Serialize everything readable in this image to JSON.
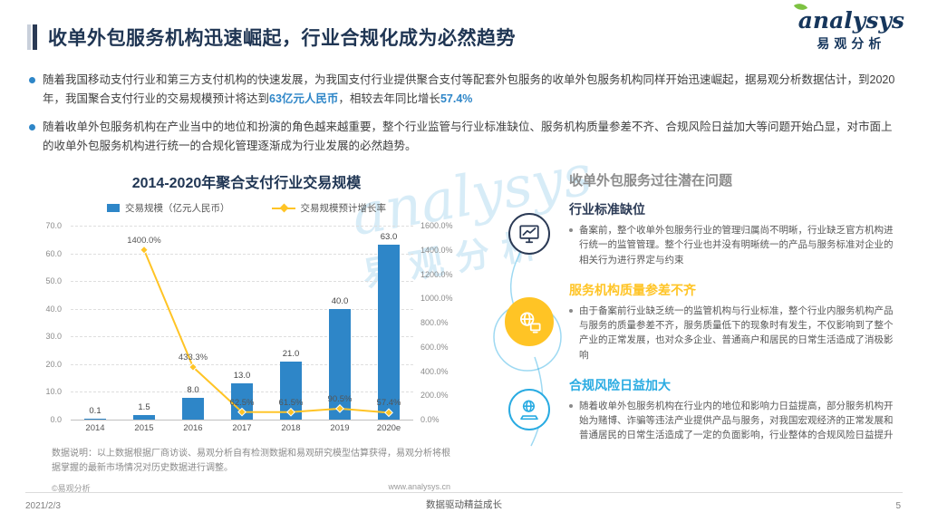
{
  "colors": {
    "title": "#1F3553",
    "highlight": "#2E86C8",
    "bar": "#2E86C8",
    "line": "#FFC425",
    "item1_accent": "#2B3A55",
    "item2_accent": "#FFC425",
    "item3_accent": "#29ABE2"
  },
  "logo": {
    "script": "analysys",
    "cn": "易观分析"
  },
  "header": {
    "title": "收单外包服务机构迅速崛起，行业合规化成为必然趋势",
    "bullets": [
      {
        "parts": [
          {
            "t": "随着我国移动支付行业和第三方支付机构的快速发展，为我国支付行业提供聚合支付等配套外包服务的收单外包服务机构同样开始迅速崛起，据易观分析数据估计，到2020年，我国聚合支付行业的交易规模预计将达到",
            "h": false
          },
          {
            "t": "63亿元人民币",
            "h": true
          },
          {
            "t": "，相较去年同比增长",
            "h": false
          },
          {
            "t": "57.4%",
            "h": true
          }
        ]
      },
      {
        "parts": [
          {
            "t": "随着收单外包服务机构在产业当中的地位和扮演的角色越来越重要，整个行业监管与行业标准缺位、服务机构质量参差不齐、合规风险日益加大等问题开始凸显，对市面上的收单外包服务机构进行统一的合规化管理逐渐成为行业发展的必然趋势。",
            "h": false
          }
        ]
      }
    ]
  },
  "chart_data": {
    "type": "bar",
    "title": "2014-2020年聚合支付行业交易规模",
    "categories": [
      "2014",
      "2015",
      "2016",
      "2017",
      "2018",
      "2019",
      "2020e"
    ],
    "series": [
      {
        "name": "交易规模（亿元人民币）",
        "type": "bar",
        "color": "#2E86C8",
        "values": [
          0.1,
          1.5,
          8.0,
          13.0,
          21.0,
          40.0,
          63.0
        ],
        "labels": [
          "0.1",
          "1.5",
          "8.0",
          "13.0",
          "21.0",
          "40.0",
          "63.0"
        ]
      },
      {
        "name": "交易规模预计增长率",
        "type": "line",
        "color": "#FFC425",
        "values": [
          null,
          1400.0,
          433.3,
          62.5,
          61.5,
          90.5,
          57.4
        ],
        "labels": [
          "",
          "1400.0%",
          "433.3%",
          "62.5%",
          "61.5%",
          "90.5%",
          "57.4%"
        ]
      }
    ],
    "left_axis": {
      "min": 0,
      "max": 70,
      "step": 10,
      "labels": [
        "70.0",
        "60.0",
        "50.0",
        "40.0",
        "30.0",
        "20.0",
        "10.0",
        "0.0"
      ]
    },
    "right_axis": {
      "min": 0,
      "max": 1600,
      "step": 200,
      "labels": [
        "1600.0%",
        "1400.0%",
        "1200.0%",
        "1000.0%",
        "800.0%",
        "600.0%",
        "400.0%",
        "200.0%",
        "0.0%"
      ]
    },
    "grid": true,
    "legend_position": "top",
    "note": "数据说明：以上数据根据厂商访谈、易观分析自有检测数据和易观研究模型估算获得，易观分析将根据掌握的最新市场情况对历史数据进行调整。"
  },
  "right_panel": {
    "heading": "收单外包服务过往潜在问题",
    "items": [
      {
        "icon": "monitor-chart-icon",
        "accent": "#2B3A55",
        "fill": "outline",
        "title": "行业标准缺位",
        "body": "备案前，整个收单外包服务行业的管理归属尚不明晰，行业缺乏官方机构进行统一的监管管理。整个行业也并没有明晰统一的产品与服务标准对企业的相关行为进行界定与约束"
      },
      {
        "icon": "globe-monitor-icon",
        "accent": "#FFC425",
        "fill": "filled",
        "title": "服务机构质量参差不齐",
        "body": "由于备案前行业缺乏统一的监管机构与行业标准，整个行业内服务机构产品与服务的质量参差不齐，服务质量低下的现象时有发生，不仅影响到了整个产业的正常发展，也对众多企业、普通商户和居民的日常生活造成了消极影响"
      },
      {
        "icon": "globe-laptop-icon",
        "accent": "#29ABE2",
        "fill": "outline",
        "title": "合规风险日益加大",
        "body": "随着收单外包服务机构在行业内的地位和影响力日益提高，部分服务机构开始为赌博、诈骗等违法产业提供产品与服务，对我国宏观经济的正常发展和普通居民的日常生活造成了一定的负面影响，行业整体的合规风险日益提升"
      }
    ]
  },
  "watermark": {
    "line1": "analysys",
    "line2": "易观分析"
  },
  "meta": {
    "date": "2021/2/3",
    "footer_center": "数据驱动精益成长",
    "page_number": "5",
    "copyright": "©易观分析",
    "website": "www.analysys.cn"
  }
}
